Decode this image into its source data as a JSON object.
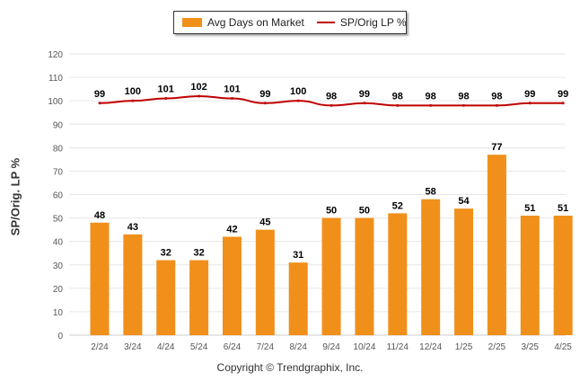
{
  "legend": {
    "bar_label": "Avg Days on Market",
    "line_label": "SP/Orig LP %"
  },
  "copyright": "Copyright © Trendgraphix, Inc.",
  "colors": {
    "bar": "#f0901a",
    "line": "#c00000",
    "grid": "#e6e6e6",
    "axis_text": "#555555",
    "label_text": "#000000"
  },
  "chart_data": {
    "type": "bar",
    "categories": [
      "2/24",
      "3/24",
      "4/24",
      "5/24",
      "6/24",
      "7/24",
      "8/24",
      "9/24",
      "10/24",
      "11/24",
      "12/24",
      "1/25",
      "2/25",
      "3/25",
      "4/25"
    ],
    "series": [
      {
        "name": "Avg Days on Market",
        "type": "bar",
        "values": [
          48,
          43,
          32,
          32,
          42,
          45,
          31,
          50,
          50,
          52,
          58,
          54,
          77,
          51,
          51
        ]
      },
      {
        "name": "SP/Orig LP %",
        "type": "line",
        "values": [
          99,
          100,
          101,
          102,
          101,
          99,
          100,
          98,
          99,
          98,
          98,
          98,
          98,
          99,
          99
        ]
      }
    ],
    "ylabel": "SP/Orig. LP %",
    "ylim": [
      0,
      120
    ],
    "yticks": [
      0,
      10,
      20,
      30,
      40,
      50,
      60,
      70,
      80,
      90,
      100,
      110,
      120
    ],
    "grid": true,
    "legend_position": "top-center"
  }
}
